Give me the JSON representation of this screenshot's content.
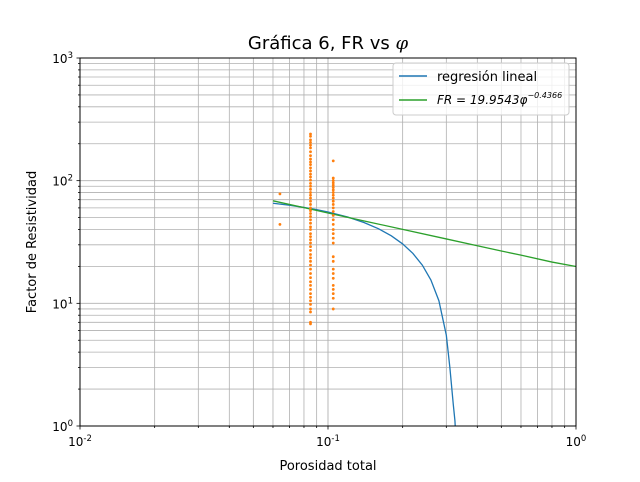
{
  "chart_data": {
    "type": "line",
    "title_prefix": "Gráfica 6, FR vs ",
    "title_symbol": "φ",
    "xlabel": "Porosidad total",
    "ylabel": "Factor de Resistividad",
    "xscale": "log",
    "yscale": "log",
    "xlim": [
      0.01,
      1
    ],
    "ylim": [
      1,
      1000
    ],
    "grid": "major and minor",
    "legend_position": "top-right",
    "x_ticks": [
      {
        "base": "10",
        "exp": "-2"
      },
      {
        "base": "10",
        "exp": "-1"
      },
      {
        "base": "10",
        "exp": "0"
      }
    ],
    "y_ticks": [
      {
        "base": "10",
        "exp": "0"
      },
      {
        "base": "10",
        "exp": "1"
      },
      {
        "base": "10",
        "exp": "2"
      },
      {
        "base": "10",
        "exp": "3"
      }
    ],
    "series": [
      {
        "name": "regresión lineal",
        "kind": "line",
        "color": "#1f77b4",
        "x": [
          0.06,
          0.07,
          0.08,
          0.09,
          0.1,
          0.12,
          0.14,
          0.16,
          0.18,
          0.2,
          0.22,
          0.24,
          0.26,
          0.28,
          0.3,
          0.31,
          0.32,
          0.325,
          0.33
        ],
        "y": [
          65.5,
          63,
          60.5,
          58,
          55.5,
          50.5,
          45.5,
          40.5,
          35.5,
          30.5,
          25.5,
          20.5,
          15.5,
          10.5,
          5.5,
          3.0,
          1.5,
          1.1,
          0.6
        ]
      },
      {
        "name": "FR = 19.9543φ",
        "name_exponent": "−0.4366",
        "kind": "line",
        "color": "#2ca02c",
        "x": [
          0.06,
          0.08,
          0.1,
          0.15,
          0.2,
          0.3,
          0.4,
          0.5,
          0.6,
          0.8,
          1.0
        ],
        "y": [
          68.5,
          60.3,
          54.5,
          45.5,
          40.1,
          33.5,
          29.5,
          26.7,
          24.7,
          21.7,
          19.95
        ]
      },
      {
        "name": "",
        "kind": "scatter",
        "color": "#ff7f0e",
        "points": [
          [
            0.064,
            78
          ],
          [
            0.064,
            44
          ],
          [
            0.085,
            240
          ],
          [
            0.085,
            230
          ],
          [
            0.085,
            215
          ],
          [
            0.085,
            205
          ],
          [
            0.085,
            195
          ],
          [
            0.085,
            185
          ],
          [
            0.085,
            172
          ],
          [
            0.085,
            160
          ],
          [
            0.085,
            150
          ],
          [
            0.085,
            142
          ],
          [
            0.085,
            135
          ],
          [
            0.085,
            127
          ],
          [
            0.085,
            120
          ],
          [
            0.085,
            113
          ],
          [
            0.085,
            107
          ],
          [
            0.085,
            101
          ],
          [
            0.085,
            95
          ],
          [
            0.085,
            90
          ],
          [
            0.085,
            85
          ],
          [
            0.085,
            80
          ],
          [
            0.085,
            76
          ],
          [
            0.085,
            72
          ],
          [
            0.085,
            68
          ],
          [
            0.085,
            64
          ],
          [
            0.085,
            60
          ],
          [
            0.085,
            57
          ],
          [
            0.085,
            54
          ],
          [
            0.085,
            51
          ],
          [
            0.085,
            48
          ],
          [
            0.085,
            45
          ],
          [
            0.085,
            42
          ],
          [
            0.085,
            40
          ],
          [
            0.085,
            37
          ],
          [
            0.085,
            35
          ],
          [
            0.085,
            33
          ],
          [
            0.085,
            31
          ],
          [
            0.085,
            29
          ],
          [
            0.085,
            27
          ],
          [
            0.085,
            25
          ],
          [
            0.085,
            23.5
          ],
          [
            0.085,
            22
          ],
          [
            0.085,
            20.5
          ],
          [
            0.085,
            19
          ],
          [
            0.085,
            17.5
          ],
          [
            0.085,
            16.2
          ],
          [
            0.085,
            15
          ],
          [
            0.085,
            14
          ],
          [
            0.085,
            13
          ],
          [
            0.085,
            12
          ],
          [
            0.085,
            11.2
          ],
          [
            0.085,
            10.5
          ],
          [
            0.085,
            9.8
          ],
          [
            0.085,
            9.0
          ],
          [
            0.085,
            8.5
          ],
          [
            0.085,
            7.0
          ],
          [
            0.085,
            6.8
          ],
          [
            0.105,
            145
          ],
          [
            0.105,
            105
          ],
          [
            0.105,
            100
          ],
          [
            0.105,
            96
          ],
          [
            0.105,
            92
          ],
          [
            0.105,
            88
          ],
          [
            0.105,
            84
          ],
          [
            0.105,
            80
          ],
          [
            0.105,
            76
          ],
          [
            0.105,
            72
          ],
          [
            0.105,
            68
          ],
          [
            0.105,
            64
          ],
          [
            0.105,
            60
          ],
          [
            0.105,
            56
          ],
          [
            0.105,
            52
          ],
          [
            0.105,
            48
          ],
          [
            0.105,
            44
          ],
          [
            0.105,
            40
          ],
          [
            0.105,
            37
          ],
          [
            0.105,
            34
          ],
          [
            0.105,
            31
          ],
          [
            0.105,
            24
          ],
          [
            0.105,
            22
          ],
          [
            0.105,
            19
          ],
          [
            0.105,
            17.5
          ],
          [
            0.105,
            16
          ],
          [
            0.105,
            14
          ],
          [
            0.105,
            13
          ],
          [
            0.105,
            12
          ],
          [
            0.105,
            11
          ],
          [
            0.105,
            9.0
          ]
        ]
      }
    ]
  }
}
